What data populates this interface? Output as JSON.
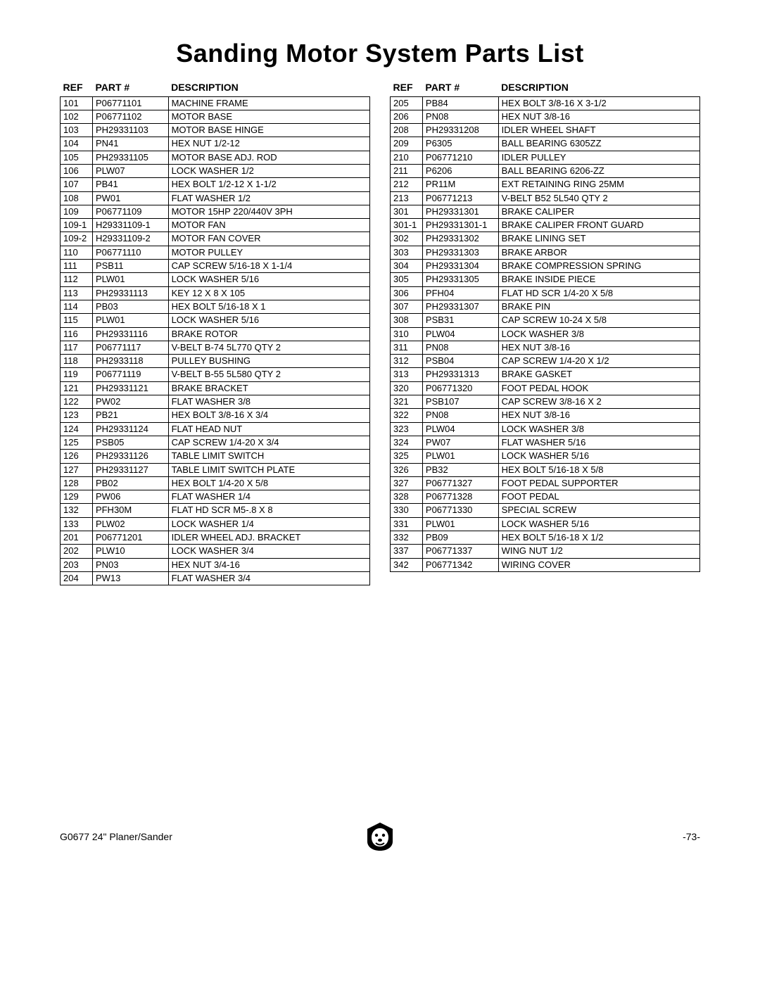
{
  "title": "Sanding Motor System Parts List",
  "headers": {
    "ref": "REF",
    "part": "PART #",
    "desc": "DESCRIPTION"
  },
  "left": [
    {
      "ref": "101",
      "part": "P06771101",
      "desc": "MACHINE FRAME"
    },
    {
      "ref": "102",
      "part": "P06771102",
      "desc": "MOTOR BASE"
    },
    {
      "ref": "103",
      "part": "PH29331103",
      "desc": "MOTOR BASE HINGE"
    },
    {
      "ref": "104",
      "part": "PN41",
      "desc": "HEX NUT 1/2-12"
    },
    {
      "ref": "105",
      "part": "PH29331105",
      "desc": "MOTOR BASE ADJ. ROD"
    },
    {
      "ref": "106",
      "part": "PLW07",
      "desc": "LOCK WASHER 1/2"
    },
    {
      "ref": "107",
      "part": "PB41",
      "desc": "HEX BOLT 1/2-12 X 1-1/2"
    },
    {
      "ref": "108",
      "part": "PW01",
      "desc": "FLAT WASHER 1/2"
    },
    {
      "ref": "109",
      "part": "P06771109",
      "desc": "MOTOR 15HP 220/440V 3PH"
    },
    {
      "ref": "109-1",
      "part": "H29331109-1",
      "desc": "MOTOR FAN"
    },
    {
      "ref": "109-2",
      "part": "H29331109-2",
      "desc": "MOTOR FAN COVER"
    },
    {
      "ref": "110",
      "part": "P06771110",
      "desc": "MOTOR PULLEY"
    },
    {
      "ref": "111",
      "part": "PSB11",
      "desc": "CAP SCREW 5/16-18 X 1-1/4"
    },
    {
      "ref": "112",
      "part": "PLW01",
      "desc": "LOCK WASHER 5/16"
    },
    {
      "ref": "113",
      "part": "PH29331113",
      "desc": "KEY 12 X 8 X 105"
    },
    {
      "ref": "114",
      "part": "PB03",
      "desc": "HEX BOLT 5/16-18 X 1"
    },
    {
      "ref": "115",
      "part": "PLW01",
      "desc": "LOCK WASHER 5/16"
    },
    {
      "ref": "116",
      "part": "PH29331116",
      "desc": "BRAKE ROTOR"
    },
    {
      "ref": "117",
      "part": "P06771117",
      "desc": "V-BELT B-74  5L770 QTY 2"
    },
    {
      "ref": "118",
      "part": "PH2933118",
      "desc": "PULLEY BUSHING"
    },
    {
      "ref": "119",
      "part": "P06771119",
      "desc": "V-BELT B-55 5L580 QTY 2"
    },
    {
      "ref": "121",
      "part": "PH29331121",
      "desc": "BRAKE BRACKET"
    },
    {
      "ref": "122",
      "part": "PW02",
      "desc": "FLAT WASHER 3/8"
    },
    {
      "ref": "123",
      "part": "PB21",
      "desc": "HEX BOLT 3/8-16 X 3/4"
    },
    {
      "ref": "124",
      "part": "PH29331124",
      "desc": "FLAT HEAD NUT"
    },
    {
      "ref": "125",
      "part": "PSB05",
      "desc": "CAP SCREW 1/4-20 X 3/4"
    },
    {
      "ref": "126",
      "part": "PH29331126",
      "desc": "TABLE LIMIT SWITCH"
    },
    {
      "ref": "127",
      "part": "PH29331127",
      "desc": "TABLE LIMIT SWITCH PLATE"
    },
    {
      "ref": "128",
      "part": "PB02",
      "desc": "HEX BOLT 1/4-20 X 5/8"
    },
    {
      "ref": "129",
      "part": "PW06",
      "desc": "FLAT WASHER 1/4"
    },
    {
      "ref": "132",
      "part": "PFH30M",
      "desc": "FLAT HD SCR M5-.8 X 8"
    },
    {
      "ref": "133",
      "part": "PLW02",
      "desc": "LOCK WASHER 1/4"
    },
    {
      "ref": "201",
      "part": "P06771201",
      "desc": "IDLER WHEEL ADJ. BRACKET"
    },
    {
      "ref": "202",
      "part": "PLW10",
      "desc": "LOCK WASHER 3/4"
    },
    {
      "ref": "203",
      "part": "PN03",
      "desc": "HEX NUT 3/4-16"
    },
    {
      "ref": "204",
      "part": "PW13",
      "desc": "FLAT WASHER 3/4"
    }
  ],
  "right": [
    {
      "ref": "205",
      "part": "PB84",
      "desc": "HEX BOLT 3/8-16 X 3-1/2"
    },
    {
      "ref": "206",
      "part": "PN08",
      "desc": "HEX NUT 3/8-16"
    },
    {
      "ref": "208",
      "part": "PH29331208",
      "desc": "IDLER WHEEL SHAFT"
    },
    {
      "ref": "209",
      "part": "P6305",
      "desc": "BALL BEARING 6305ZZ"
    },
    {
      "ref": "210",
      "part": "P06771210",
      "desc": "IDLER PULLEY"
    },
    {
      "ref": "211",
      "part": "P6206",
      "desc": "BALL BEARING 6206-ZZ"
    },
    {
      "ref": "212",
      "part": "PR11M",
      "desc": "EXT RETAINING RING 25MM"
    },
    {
      "ref": "213",
      "part": "P06771213",
      "desc": "V-BELT B52 5L540 QTY 2"
    },
    {
      "ref": "301",
      "part": "PH29331301",
      "desc": "BRAKE CALIPER"
    },
    {
      "ref": "301-1",
      "part": "PH29331301-1",
      "desc": "BRAKE CALIPER FRONT GUARD"
    },
    {
      "ref": "302",
      "part": "PH29331302",
      "desc": "BRAKE LINING SET"
    },
    {
      "ref": "303",
      "part": "PH29331303",
      "desc": "BRAKE ARBOR"
    },
    {
      "ref": "304",
      "part": "PH29331304",
      "desc": "BRAKE COMPRESSION SPRING"
    },
    {
      "ref": "305",
      "part": "PH29331305",
      "desc": "BRAKE INSIDE PIECE"
    },
    {
      "ref": "306",
      "part": "PFH04",
      "desc": "FLAT HD SCR 1/4-20 X 5/8"
    },
    {
      "ref": "307",
      "part": "PH29331307",
      "desc": "BRAKE PIN"
    },
    {
      "ref": "308",
      "part": "PSB31",
      "desc": "CAP SCREW 10-24 X 5/8"
    },
    {
      "ref": "310",
      "part": "PLW04",
      "desc": "LOCK WASHER 3/8"
    },
    {
      "ref": "311",
      "part": "PN08",
      "desc": "HEX NUT 3/8-16"
    },
    {
      "ref": "312",
      "part": "PSB04",
      "desc": "CAP SCREW 1/4-20 X 1/2"
    },
    {
      "ref": "313",
      "part": "PH29331313",
      "desc": "BRAKE GASKET"
    },
    {
      "ref": "320",
      "part": "P06771320",
      "desc": "FOOT PEDAL HOOK"
    },
    {
      "ref": "321",
      "part": "PSB107",
      "desc": "CAP SCREW 3/8-16 X 2"
    },
    {
      "ref": "322",
      "part": "PN08",
      "desc": "HEX NUT 3/8-16"
    },
    {
      "ref": "323",
      "part": "PLW04",
      "desc": "LOCK WASHER 3/8"
    },
    {
      "ref": "324",
      "part": "PW07",
      "desc": "FLAT WASHER 5/16"
    },
    {
      "ref": "325",
      "part": "PLW01",
      "desc": "LOCK WASHER 5/16"
    },
    {
      "ref": "326",
      "part": "PB32",
      "desc": "HEX BOLT 5/16-18 X 5/8"
    },
    {
      "ref": "327",
      "part": "P06771327",
      "desc": "FOOT PEDAL SUPPORTER"
    },
    {
      "ref": "328",
      "part": "P06771328",
      "desc": "FOOT PEDAL"
    },
    {
      "ref": "330",
      "part": "P06771330",
      "desc": "SPECIAL SCREW"
    },
    {
      "ref": "331",
      "part": "PLW01",
      "desc": "LOCK WASHER 5/16"
    },
    {
      "ref": "332",
      "part": "PB09",
      "desc": "HEX BOLT 5/16-18 X 1/2"
    },
    {
      "ref": "337",
      "part": "P06771337",
      "desc": "WING NUT 1/2"
    },
    {
      "ref": "342",
      "part": "P06771342",
      "desc": "WIRING COVER"
    }
  ],
  "footer": {
    "left": "G0677 24\" Planer/Sander",
    "right": "-73-"
  }
}
